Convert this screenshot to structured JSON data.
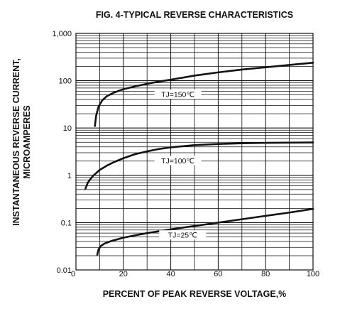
{
  "chart_data": {
    "type": "line",
    "title": "FIG. 4-TYPICAL REVERSE CHARACTERISTICS",
    "xlabel": "PERCENT OF PEAK REVERSE VOLTAGE,%",
    "ylabel_lines": [
      "INSTANTANEOUS REVERSE CURRENT,",
      "MICROAMPERES"
    ],
    "xlim": [
      0,
      100
    ],
    "ylim": [
      0.01,
      1000
    ],
    "y_scale": "log",
    "grid": true,
    "x_ticks": [
      {
        "value": 0,
        "label": "0"
      },
      {
        "value": 20,
        "label": "20"
      },
      {
        "value": 40,
        "label": "40"
      },
      {
        "value": 60,
        "label": "60"
      },
      {
        "value": 80,
        "label": "80"
      },
      {
        "value": 100,
        "label": "100"
      }
    ],
    "y_ticks": [
      {
        "value": 0.01,
        "label": "0.01"
      },
      {
        "value": 0.1,
        "label": "0.1"
      },
      {
        "value": 1,
        "label": "1"
      },
      {
        "value": 10,
        "label": "10"
      },
      {
        "value": 100,
        "label": "100"
      },
      {
        "value": 1000,
        "label": "1,000"
      }
    ],
    "series": [
      {
        "name": "TJ=150℃",
        "label_at": {
          "x": 43,
          "y": 52
        },
        "x": [
          8,
          8.5,
          9.5,
          11,
          13,
          16,
          20,
          25,
          30,
          35,
          40,
          50,
          60,
          70,
          80,
          90,
          100
        ],
        "y": [
          11,
          18,
          28,
          38,
          47,
          56,
          66,
          76,
          86,
          96,
          105,
          128,
          150,
          172,
          192,
          215,
          240
        ]
      },
      {
        "name": "TJ=100℃",
        "label_at": {
          "x": 43,
          "y": 2.05
        },
        "x": [
          4,
          5,
          7,
          10,
          13,
          16,
          20,
          25,
          30,
          35,
          40,
          50,
          60,
          70,
          80,
          90,
          100
        ],
        "y": [
          0.52,
          0.7,
          0.95,
          1.3,
          1.6,
          1.9,
          2.3,
          2.8,
          3.2,
          3.6,
          3.9,
          4.35,
          4.6,
          4.75,
          4.85,
          4.9,
          4.95
        ]
      },
      {
        "name": "TJ=25℃",
        "label_at": {
          "x": 45,
          "y": 0.055
        },
        "x": [
          9,
          9.5,
          10.5,
          12,
          15,
          20,
          25,
          30,
          40,
          50,
          60,
          70,
          80,
          90,
          100
        ],
        "y": [
          0.021,
          0.027,
          0.032,
          0.036,
          0.041,
          0.048,
          0.054,
          0.06,
          0.072,
          0.085,
          0.1,
          0.118,
          0.139,
          0.163,
          0.195
        ]
      }
    ]
  }
}
